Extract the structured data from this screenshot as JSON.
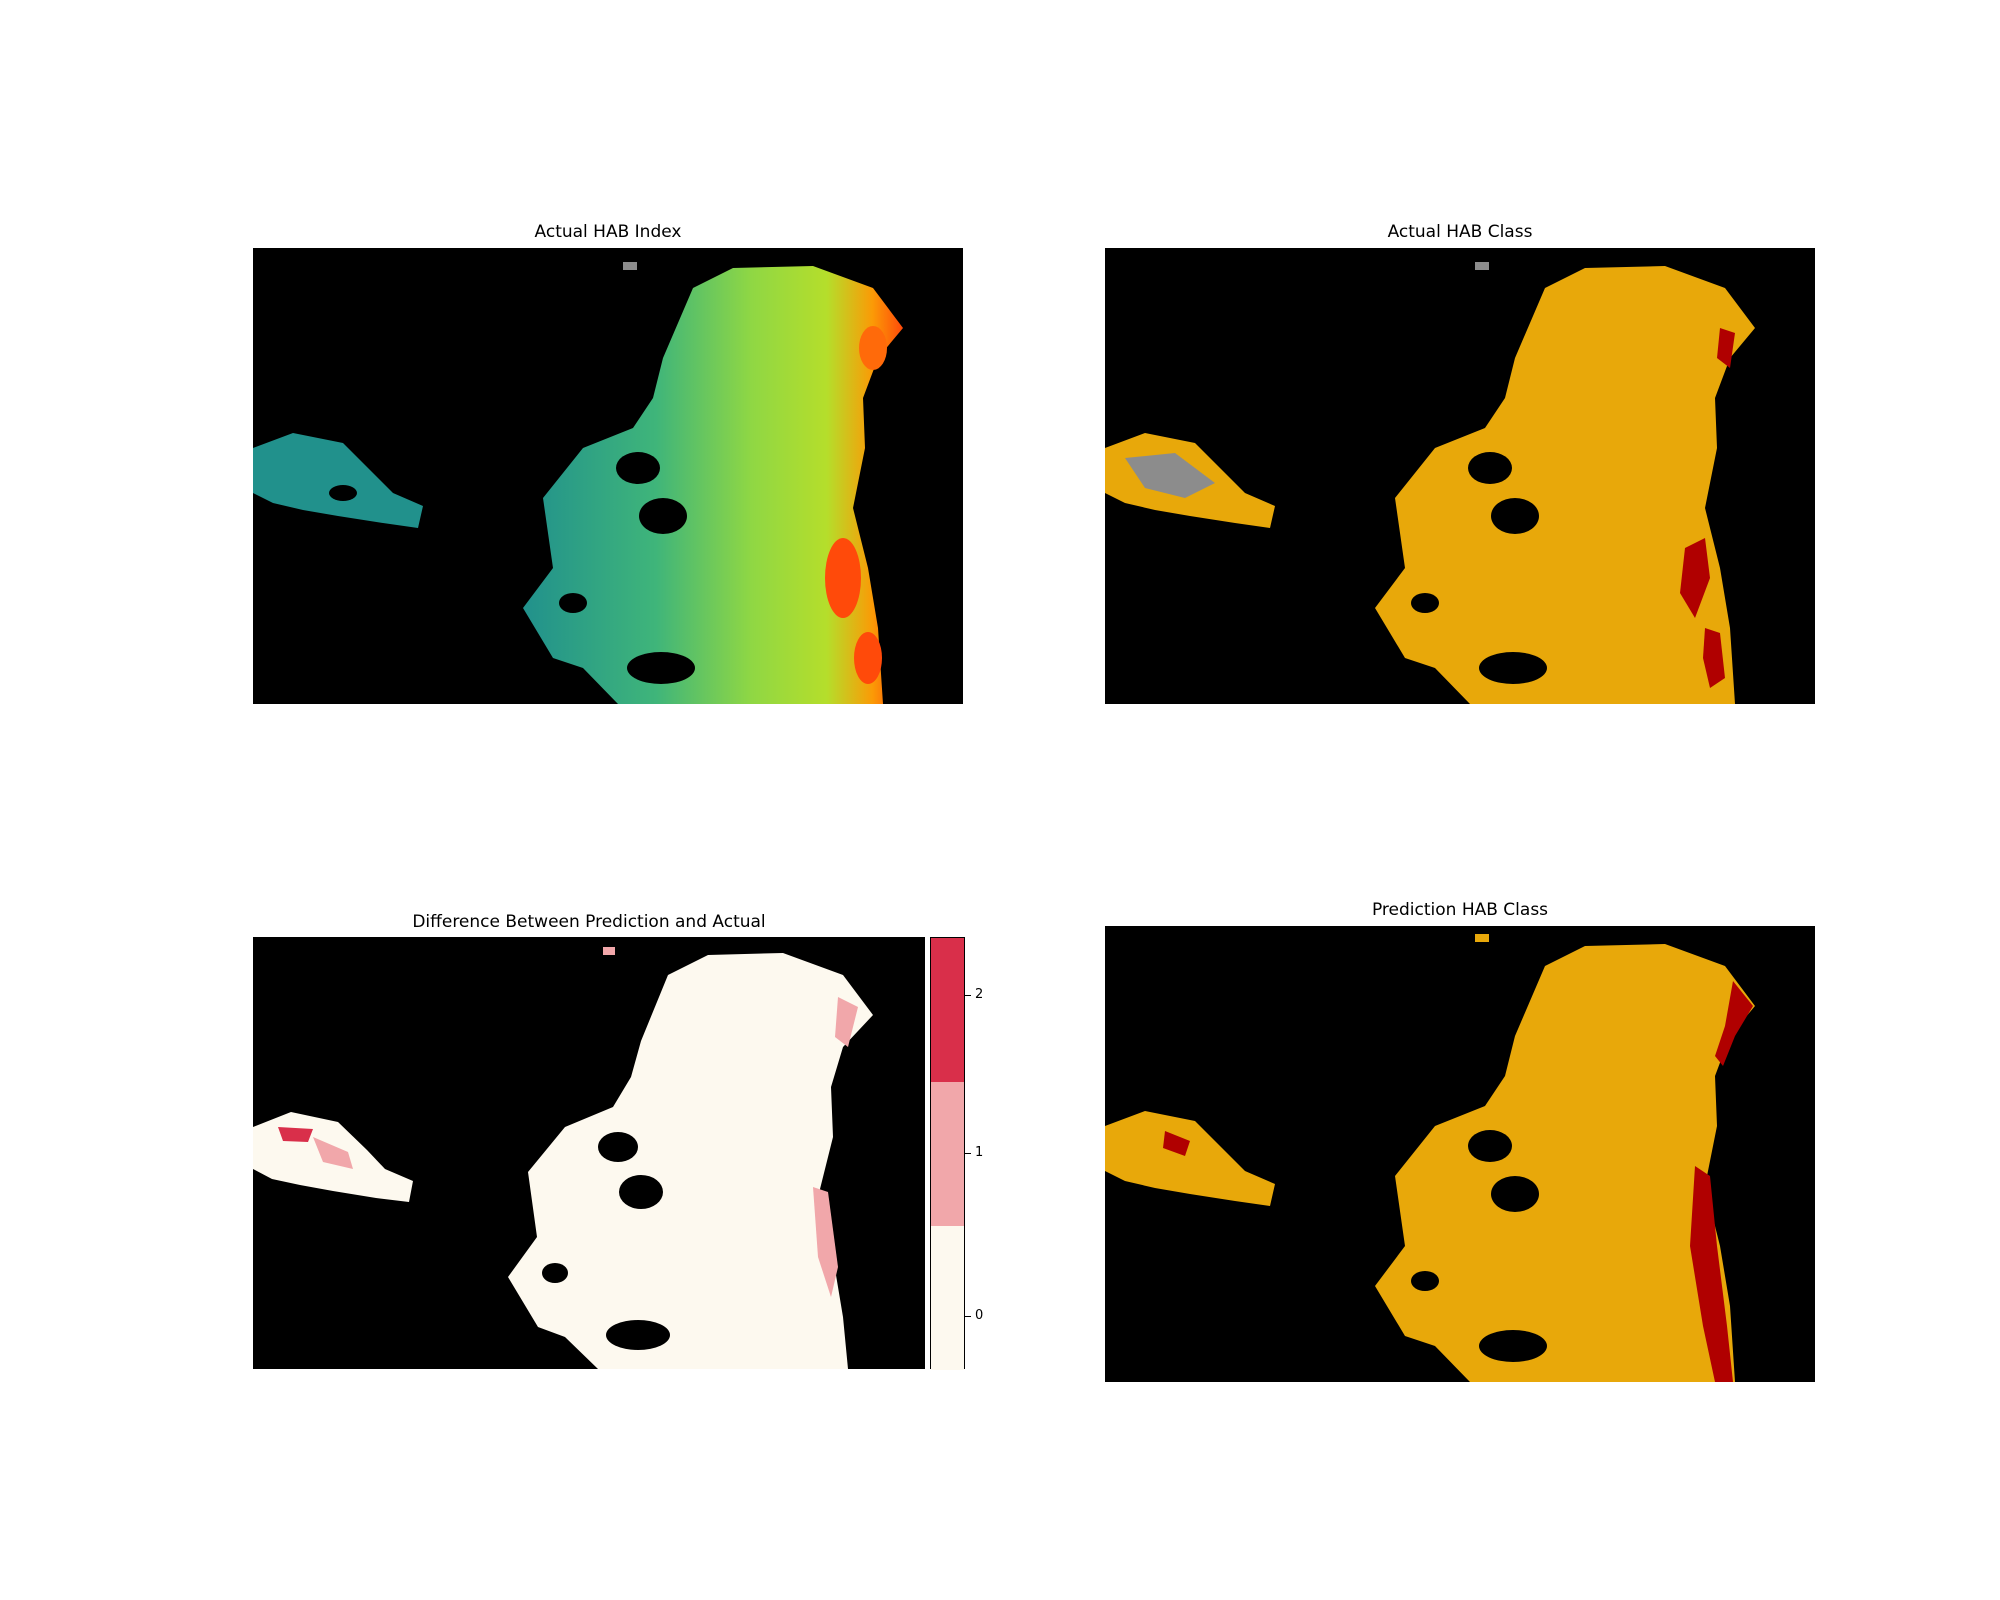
{
  "chart_data": [
    {
      "type": "heatmap",
      "title": "Actual HAB Index",
      "colormap": [
        "#3b528b",
        "#21918c",
        "#5ec962",
        "#b5de2b",
        "#fb9a06",
        "#ff4a0a"
      ],
      "background": "#000000",
      "nodata_color": "#000000"
    },
    {
      "type": "heatmap",
      "title": "Actual HAB Class",
      "classes": [
        {
          "color": "#8c8c8c"
        },
        {
          "color": "#e8a80a"
        },
        {
          "color": "#b00000"
        }
      ],
      "background": "#000000"
    },
    {
      "type": "heatmap",
      "title": "Difference Between Prediction and Actual",
      "colorbar": {
        "ticks": [
          "0",
          "1",
          "2"
        ],
        "colors": [
          "#fdf9ef",
          "#f1a7aa",
          "#d92f4a"
        ]
      },
      "background": "#000000"
    },
    {
      "type": "heatmap",
      "title": "Prediction HAB Class",
      "classes": [
        {
          "color": "#e8a80a"
        },
        {
          "color": "#b00000"
        }
      ],
      "background": "#000000"
    }
  ]
}
